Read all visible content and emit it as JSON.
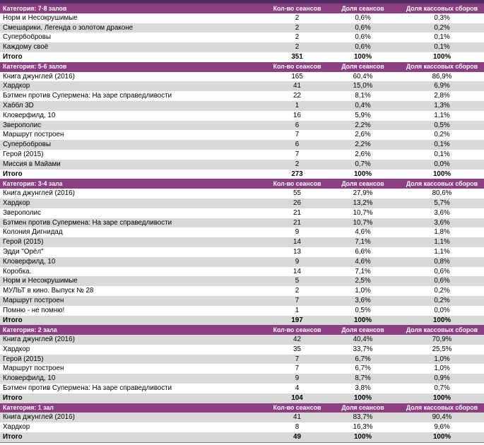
{
  "colors": {
    "top_bar": "#4f2f63",
    "header_bg": "#8c3f82",
    "band_gray": "#d9d9d9",
    "bottom_line": "#7f7f7f"
  },
  "columns": {
    "sessions": "Кол-во сеансов",
    "sessions_share": "Доля сеансов",
    "boxoffice_share": "Доля кассовых сборов"
  },
  "total_label": "Итого",
  "sections": [
    {
      "category": "Категория: 7-8 залов",
      "rows": [
        [
          "Норм и Несокрушимые",
          "2",
          "0,6%",
          "0,3%"
        ],
        [
          "Смешарики. Легенда о золотом драконе",
          "2",
          "0,6%",
          "0,2%"
        ],
        [
          "Супербобровы",
          "2",
          "0,6%",
          "0,1%"
        ],
        [
          "Каждому своё",
          "2",
          "0,6%",
          "0,1%"
        ]
      ],
      "total": [
        "351",
        "100%",
        "100%"
      ]
    },
    {
      "category": "Категория: 5-6 залов",
      "rows": [
        [
          "Книга джунглей (2016)",
          "165",
          "60,4%",
          "86,9%"
        ],
        [
          "Хардкор",
          "41",
          "15,0%",
          "6,9%"
        ],
        [
          "Бэтмен против Супермена: На заре справедливости",
          "22",
          "8,1%",
          "2,8%"
        ],
        [
          "Хаббл 3D",
          "1",
          "0,4%",
          "1,3%"
        ],
        [
          "Кловерфилд, 10",
          "16",
          "5,9%",
          "1,1%"
        ],
        [
          "Зверополис",
          "6",
          "2,2%",
          "0,5%"
        ],
        [
          "Маршрут построен",
          "7",
          "2,6%",
          "0,2%"
        ],
        [
          "Супербобровы",
          "6",
          "2,2%",
          "0,1%"
        ],
        [
          "Герой (2015)",
          "7",
          "2,6%",
          "0,1%"
        ],
        [
          "Миссия в Майами",
          "2",
          "0,7%",
          "0,0%"
        ]
      ],
      "total": [
        "273",
        "100%",
        "100%"
      ]
    },
    {
      "category": "Категория: 3-4 зала",
      "rows": [
        [
          "Книга джунглей (2016)",
          "55",
          "27,9%",
          "80,6%"
        ],
        [
          "Хардкор",
          "26",
          "13,2%",
          "5,7%"
        ],
        [
          "Зверополис",
          "21",
          "10,7%",
          "3,6%"
        ],
        [
          "Бэтмен против Супермена: На заре справедливости",
          "21",
          "10,7%",
          "3,6%"
        ],
        [
          "Колония Дигнидад",
          "9",
          "4,6%",
          "1,8%"
        ],
        [
          "Герой (2015)",
          "14",
          "7,1%",
          "1,1%"
        ],
        [
          "Эдди \"Орёл\"",
          "13",
          "6,6%",
          "1,1%"
        ],
        [
          "Кловерфилд, 10",
          "9",
          "4,6%",
          "0,8%"
        ],
        [
          "Коробка.",
          "14",
          "7,1%",
          "0,6%"
        ],
        [
          "Норм и Несокрушимые",
          "5",
          "2,5%",
          "0,6%"
        ],
        [
          "МУЛЬТ в кино. Выпуск № 28",
          "2",
          "1,0%",
          "0,2%"
        ],
        [
          "Маршрут построен",
          "7",
          "3,6%",
          "0,2%"
        ],
        [
          "Помню - не помню!",
          "1",
          "0,5%",
          "0,0%"
        ]
      ],
      "total": [
        "197",
        "100%",
        "100%"
      ]
    },
    {
      "category": "Категория: 2 зала",
      "rows": [
        [
          "Книга джунглей (2016)",
          "42",
          "40,4%",
          "70,9%"
        ],
        [
          "Хардкор",
          "35",
          "33,7%",
          "25,5%"
        ],
        [
          "Герой (2015)",
          "7",
          "6,7%",
          "1,0%"
        ],
        [
          "Маршрут построен",
          "7",
          "6,7%",
          "1,0%"
        ],
        [
          "Кловерфилд, 10",
          "9",
          "8,7%",
          "0,9%"
        ],
        [
          "Бэтмен против Супермена: На заре справедливости",
          "4",
          "3,8%",
          "0,7%"
        ]
      ],
      "total": [
        "104",
        "100%",
        "100%"
      ]
    },
    {
      "category": "Категория: 1 зал",
      "rows": [
        [
          "Книга джунглей (2016)",
          "41",
          "83,7%",
          "90,4%"
        ],
        [
          "Хардкор",
          "8",
          "16,3%",
          "9,6%"
        ]
      ],
      "total": [
        "49",
        "100%",
        "100%"
      ]
    }
  ]
}
